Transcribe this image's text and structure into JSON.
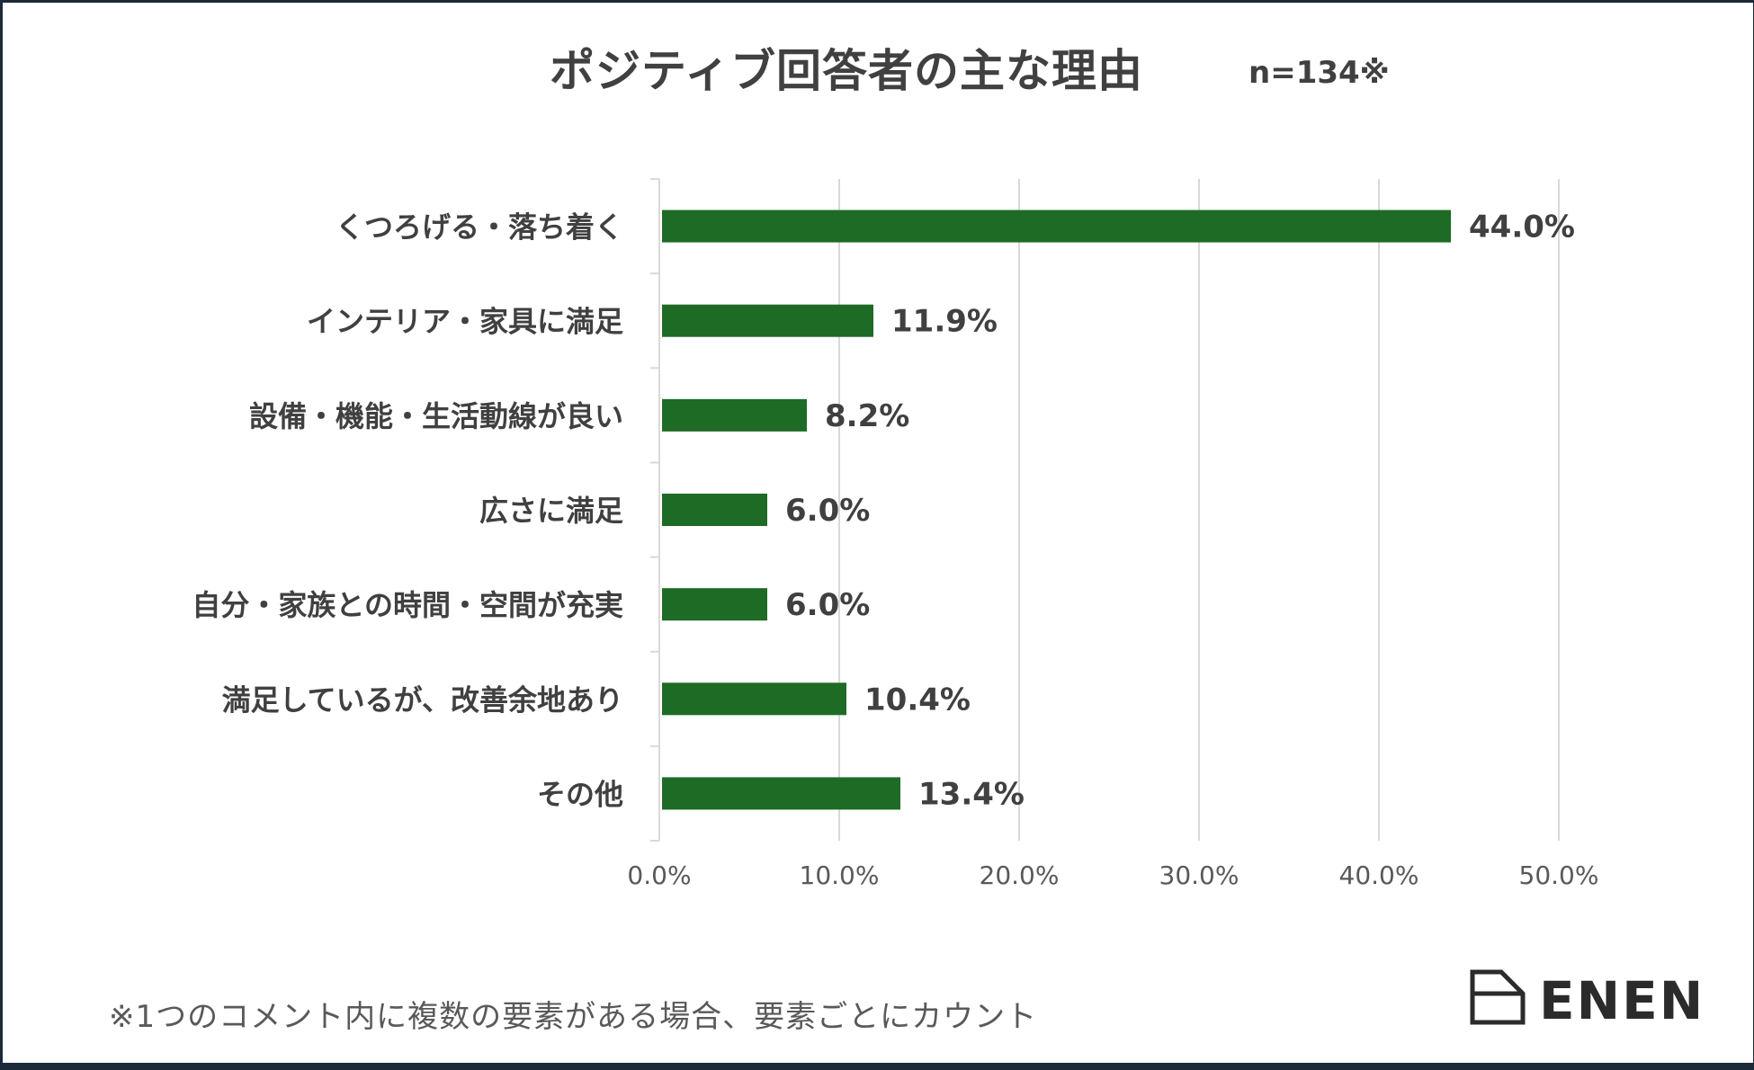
{
  "title": "ポジティブ回答者の主な理由",
  "sample_note": "n=134※",
  "footnote": "※1つのコメント内に複数の要素がある場合、要素ごとにカウント",
  "logo": {
    "text": "ENEN",
    "icon": "document-outline-icon"
  },
  "colors": {
    "bar": "#1e6b25",
    "grid": "#d9d9d9",
    "text": "#404040"
  },
  "chart_data": {
    "type": "bar",
    "orientation": "horizontal",
    "categories": [
      "くつろげる・落ち着く",
      "インテリア・家具に満足",
      "設備・機能・生活動線が良い",
      "広さに満足",
      "自分・家族との時間・空間が充実",
      "満足しているが、改善余地あり",
      "その他"
    ],
    "values": [
      44.0,
      11.9,
      8.2,
      6.0,
      6.0,
      10.4,
      13.4
    ],
    "data_labels": [
      "44.0%",
      "11.9%",
      "8.2%",
      "6.0%",
      "6.0%",
      "10.4%",
      "13.4%"
    ],
    "xlim": [
      0,
      50
    ],
    "x_ticks": [
      0,
      10,
      20,
      30,
      40,
      50
    ],
    "x_tick_labels": [
      "0.0%",
      "10.0%",
      "20.0%",
      "30.0%",
      "40.0%",
      "50.0%"
    ],
    "grid": true,
    "title": "ポジティブ回答者の主な理由"
  }
}
